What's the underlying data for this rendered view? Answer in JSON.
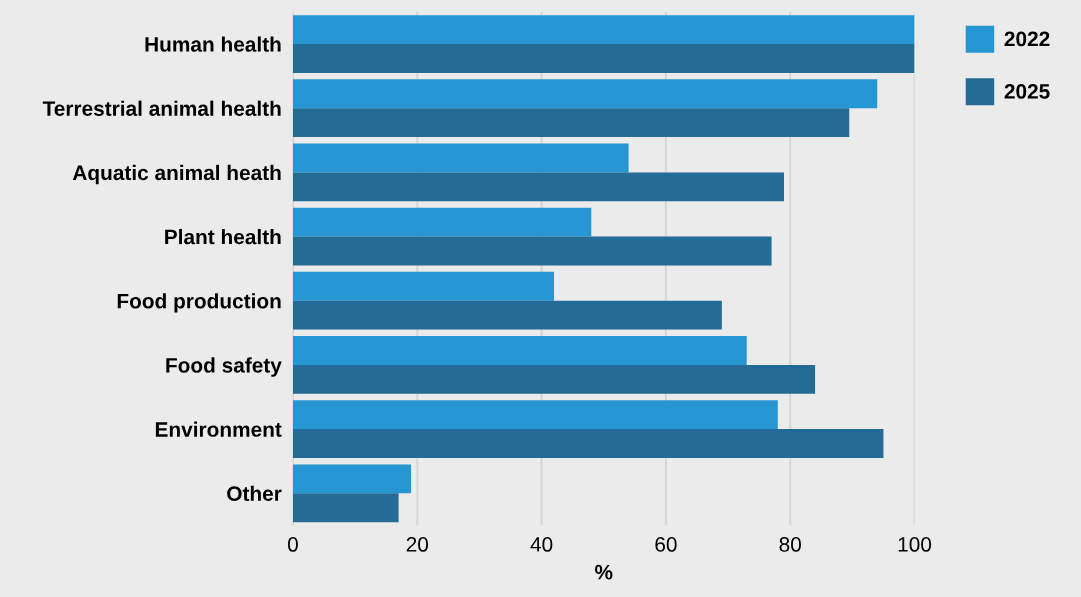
{
  "chart_data": {
    "type": "bar",
    "orientation": "horizontal",
    "xlabel": "%",
    "categories": [
      "Human health",
      "Terrestrial animal health",
      "Aquatic animal heath",
      "Plant health",
      "Food production",
      "Food safety",
      "Environment",
      "Other"
    ],
    "series": [
      {
        "name": "2022",
        "color": "#2596d1",
        "values": [
          100,
          94,
          54,
          48,
          42,
          73,
          78,
          19
        ]
      },
      {
        "name": "2025",
        "color": "#246b96",
        "values": [
          100,
          89.5,
          79,
          77,
          69,
          84,
          95,
          17
        ]
      }
    ],
    "xlim": [
      0,
      100
    ],
    "xticks": [
      0,
      20,
      40,
      60,
      80,
      100
    ],
    "grid": "x",
    "legend": "top right"
  }
}
